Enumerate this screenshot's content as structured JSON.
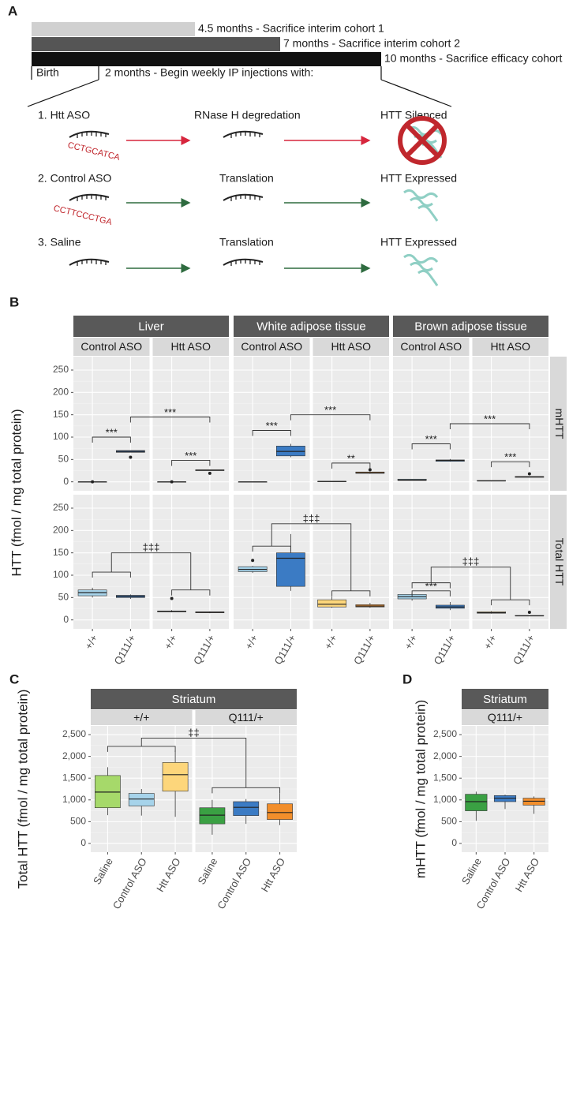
{
  "panel_a": {
    "label": "A",
    "timeline": [
      "4.5 months - Sacrifice interim cohort 1",
      "7 months - Sacrifice interim cohort 2",
      "10 months - Sacrifice efficacy cohort"
    ],
    "birth": "Birth",
    "start": "2 months - Begin weekly IP injections with:",
    "rows": [
      {
        "treatment": "1. Htt ASO",
        "sequence": "CCTGCATCA",
        "step": "RNase H degredation",
        "outcome": "HTT Silenced"
      },
      {
        "treatment": "2. Control ASO",
        "sequence": "CCTTCCCTGA",
        "step": "Translation",
        "outcome": "HTT Expressed"
      },
      {
        "treatment": "3. Saline",
        "step": "Translation",
        "outcome": "HTT Expressed"
      }
    ]
  },
  "chart_data": [
    {
      "type": "box",
      "label": "B",
      "y_label": "HTT (fmol / mg total protein)",
      "columns": [
        "Liver",
        "White adipose tissue",
        "Brown adipose tissue"
      ],
      "subcolumns": [
        "Control ASO",
        "Htt ASO"
      ],
      "categories": [
        "+/+",
        "Q111/+"
      ],
      "rows": [
        "mHTT",
        "Total HTT"
      ],
      "ylim": [
        -20,
        280
      ],
      "yticks": [
        0,
        50,
        100,
        150,
        200,
        250
      ],
      "grid": true,
      "colors": [
        [
          "#a6d3ea",
          "#3b7bc4"
        ],
        [
          "#fdd67b",
          "#f28e2b"
        ]
      ],
      "boxes": [
        [
          [
            [
              {
                "whislo": 0,
                "q1": 0,
                "med": 0,
                "q3": 0,
                "whishi": 0,
                "fliers": [
                  0
                ]
              },
              {
                "whislo": 66,
                "q1": 66,
                "med": 68,
                "q3": 70,
                "whishi": 70,
                "fliers": [
                  55
                ]
              }
            ],
            [
              {
                "whislo": 0,
                "q1": 0,
                "med": 0,
                "q3": 0,
                "whishi": 0,
                "fliers": [
                  0
                ]
              },
              {
                "whislo": 25,
                "q1": 25,
                "med": 26,
                "q3": 27,
                "whishi": 27,
                "fliers": [
                  19
                ]
              }
            ]
          ],
          [
            [
              {
                "whislo": 0,
                "q1": 0,
                "med": 0,
                "q3": 0,
                "whishi": 0
              },
              {
                "whislo": 55,
                "q1": 58,
                "med": 68,
                "q3": 80,
                "whishi": 85
              }
            ],
            [
              {
                "whislo": 1,
                "q1": 1,
                "med": 1,
                "q3": 1,
                "whishi": 1
              },
              {
                "whislo": 18,
                "q1": 19,
                "med": 20,
                "q3": 22,
                "whishi": 23,
                "fliers": [
                  27
                ]
              }
            ]
          ],
          [
            [
              {
                "whislo": 3,
                "q1": 3,
                "med": 4,
                "q3": 6,
                "whishi": 6
              },
              {
                "whislo": 45,
                "q1": 46,
                "med": 48,
                "q3": 49,
                "whishi": 51
              }
            ],
            [
              {
                "whislo": 2,
                "q1": 2,
                "med": 2,
                "q3": 3,
                "whishi": 3
              },
              {
                "whislo": 10,
                "q1": 10,
                "med": 11,
                "q3": 12,
                "whishi": 12,
                "fliers": [
                  18
                ]
              }
            ]
          ]
        ],
        [
          [
            [
              {
                "whislo": 50,
                "q1": 54,
                "med": 61,
                "q3": 67,
                "whishi": 72
              },
              {
                "whislo": 47,
                "q1": 50,
                "med": 53,
                "q3": 55,
                "whishi": 57
              }
            ],
            [
              {
                "whislo": 17,
                "q1": 18,
                "med": 19,
                "q3": 20,
                "whishi": 22,
                "fliers": [
                  48
                ]
              },
              {
                "whislo": 15,
                "q1": 16,
                "med": 17,
                "q3": 18,
                "whishi": 19
              }
            ]
          ],
          [
            [
              {
                "whislo": 105,
                "q1": 108,
                "med": 113,
                "q3": 119,
                "whishi": 121,
                "fliers": [
                  133
                ]
              },
              {
                "whislo": 65,
                "q1": 75,
                "med": 138,
                "q3": 150,
                "whishi": 192
              }
            ],
            [
              {
                "whislo": 27,
                "q1": 29,
                "med": 35,
                "q3": 45,
                "whishi": 52
              },
              {
                "whislo": 27,
                "q1": 29,
                "med": 31,
                "q3": 34,
                "whishi": 38
              }
            ]
          ],
          [
            [
              {
                "whislo": 43,
                "q1": 47,
                "med": 52,
                "q3": 57,
                "whishi": 60
              },
              {
                "whislo": 22,
                "q1": 26,
                "med": 29,
                "q3": 33,
                "whishi": 40
              }
            ],
            [
              {
                "whislo": 14,
                "q1": 15,
                "med": 16,
                "q3": 18,
                "whishi": 20
              },
              {
                "whislo": 9,
                "q1": 9,
                "med": 9,
                "q3": 10,
                "whishi": 10,
                "fliers": [
                  17
                ]
              }
            ]
          ]
        ]
      ],
      "brackets": [
        [
          [
            {
              "text": "***",
              "y": 100,
              "from": 0,
              "to": 1
            },
            {
              "text": "***",
              "y": 145,
              "from": 1,
              "to": 3
            },
            {
              "text": "***",
              "y": 48,
              "from": 2,
              "to": 3
            }
          ],
          [
            {
              "text": "***",
              "y": 115,
              "from": 0,
              "to": 1
            },
            {
              "text": "***",
              "y": 150,
              "from": 1,
              "to": 3
            },
            {
              "text": "**",
              "y": 42,
              "from": 2,
              "to": 3
            }
          ],
          [
            {
              "text": "***",
              "y": 85,
              "from": 0,
              "to": 1
            },
            {
              "text": "***",
              "y": 130,
              "from": 1,
              "to": 3
            },
            {
              "text": "***",
              "y": 45,
              "from": 2,
              "to": 3
            }
          ]
        ],
        [
          [
            {
              "text": "‡‡‡",
              "y": 150,
              "left_y": 107,
              "right_y": 67
            }
          ],
          [
            {
              "text": "‡‡‡",
              "y": 215,
              "left_y": 165,
              "right_y": 65
            }
          ],
          [
            {
              "text": "***",
              "y": 65,
              "from": 0,
              "to": 1
            },
            {
              "text": "‡‡‡",
              "y": 118,
              "left_y": 83,
              "right_y": 45
            }
          ]
        ]
      ]
    },
    {
      "type": "box",
      "label": "C",
      "y_label": "Total HTT (fmol / mg total protein)",
      "columns": [
        "Striatum"
      ],
      "subcolumns": [
        "+/+",
        "Q111/+"
      ],
      "categories": [
        "Saline",
        "Control ASO",
        "Htt ASO"
      ],
      "ylim": [
        -200,
        2700
      ],
      "yticks": [
        0,
        500,
        {
          "value": 1000,
          "label": "1,000"
        },
        {
          "value": 1500,
          "label": "1,500"
        },
        {
          "value": 2000,
          "label": "2,000"
        },
        {
          "value": 2500,
          "label": "2,500"
        }
      ],
      "grid": true,
      "colors": [
        [
          "#a6d96a",
          "#a6d3ea",
          "#fdd67b"
        ],
        [
          "#3aa043",
          "#3b7bc4",
          "#f28e2b"
        ]
      ],
      "boxes": [
        [
          [
            [
              {
                "whislo": 650,
                "q1": 820,
                "med": 1180,
                "q3": 1560,
                "whishi": 1750
              },
              {
                "whislo": 640,
                "q1": 860,
                "med": 1020,
                "q3": 1150,
                "whishi": 1250
              },
              {
                "whislo": 610,
                "q1": 1200,
                "med": 1580,
                "q3": 1860,
                "whishi": 2130
              }
            ],
            [
              {
                "whislo": 200,
                "q1": 450,
                "med": 650,
                "q3": 820,
                "whishi": 1000
              },
              {
                "whislo": 450,
                "q1": 640,
                "med": 830,
                "q3": 960,
                "whishi": 1020
              },
              {
                "whislo": 420,
                "q1": 550,
                "med": 710,
                "q3": 910,
                "whishi": 1150
              }
            ]
          ]
        ]
      ],
      "brackets": [
        [
          [
            {
              "text": "‡‡",
              "y": 2420,
              "left_y": 2230,
              "right_y": 1280
            }
          ]
        ]
      ]
    },
    {
      "type": "box",
      "label": "D",
      "y_label": "mHTT (fmol / mg total protein)",
      "columns": [
        "Striatum"
      ],
      "subcolumns": [
        "Q111/+"
      ],
      "categories": [
        "Saline",
        "Control ASO",
        "Htt ASO"
      ],
      "ylim": [
        -200,
        2700
      ],
      "yticks": [
        0,
        500,
        {
          "value": 1000,
          "label": "1,000"
        },
        {
          "value": 1500,
          "label": "1,500"
        },
        {
          "value": 2000,
          "label": "2,000"
        },
        {
          "value": 2500,
          "label": "2,500"
        }
      ],
      "grid": true,
      "colors": [
        [
          "#3aa043",
          "#3b7bc4",
          "#f28e2b"
        ]
      ],
      "boxes": [
        [
          [
            [
              {
                "whislo": 520,
                "q1": 750,
                "med": 960,
                "q3": 1130,
                "whishi": 1190
              },
              {
                "whislo": 790,
                "q1": 960,
                "med": 1040,
                "q3": 1100,
                "whishi": 1120
              },
              {
                "whislo": 680,
                "q1": 880,
                "med": 970,
                "q3": 1040,
                "whishi": 1080
              }
            ]
          ]
        ]
      ],
      "brackets": [
        [
          []
        ]
      ]
    }
  ]
}
